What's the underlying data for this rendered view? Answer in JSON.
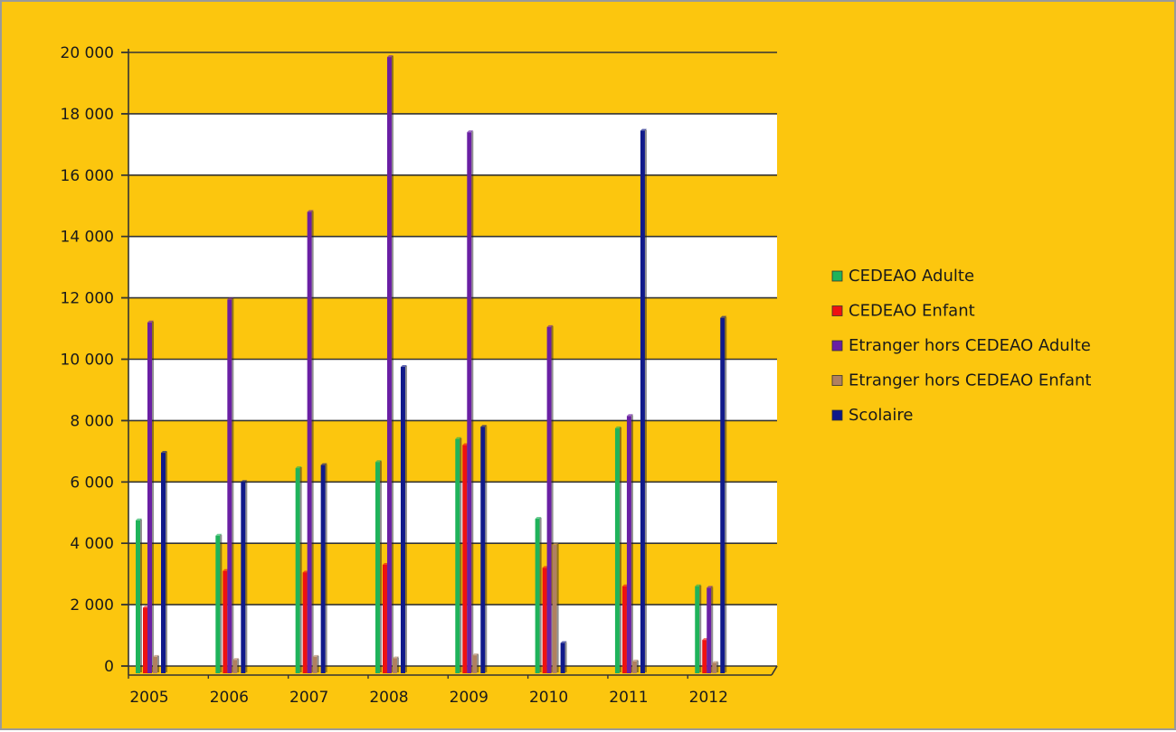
{
  "chart_data": {
    "type": "bar",
    "title": "",
    "xlabel": "",
    "ylabel": "",
    "categories": [
      "2005",
      "2006",
      "2007",
      "2008",
      "2009",
      "2010",
      "2011",
      "2012"
    ],
    "ylim": [
      0,
      20000
    ],
    "yticks": [
      0,
      2000,
      4000,
      6000,
      8000,
      10000,
      12000,
      14000,
      16000,
      18000,
      20000
    ],
    "ytick_labels": [
      "0",
      "2 000",
      "4 000",
      "6 000",
      "8 000",
      "10 000",
      "12 000",
      "14 000",
      "16 000",
      "18 000",
      "20 000"
    ],
    "grid": true,
    "legend_position": "right",
    "series": [
      {
        "name": "CEDEAO Adulte",
        "color": "#1fb35a",
        "values": [
          4750,
          4250,
          6450,
          6650,
          7400,
          4800,
          7750,
          2600
        ]
      },
      {
        "name": "CEDEAO Enfant",
        "color": "#ee1111",
        "values": [
          1900,
          3100,
          3050,
          3300,
          7200,
          3200,
          2600,
          850
        ]
      },
      {
        "name": "Etranger hors CEDEAO Adulte",
        "color": "#6a1fa4",
        "values": [
          11200,
          11950,
          14800,
          19850,
          17400,
          11050,
          8150,
          2550
        ]
      },
      {
        "name": "Etranger hors CEDEAO Enfant",
        "color": "#b08060",
        "values": [
          300,
          200,
          300,
          250,
          350,
          3950,
          150,
          100
        ]
      },
      {
        "name": "Scolaire",
        "color": "#101a8a",
        "values": [
          6950,
          6000,
          6550,
          9750,
          7800,
          750,
          17450,
          11350
        ]
      }
    ]
  },
  "colors": {
    "background": "#fcc60e",
    "band": "#ffffff",
    "gridline": "#333333"
  }
}
